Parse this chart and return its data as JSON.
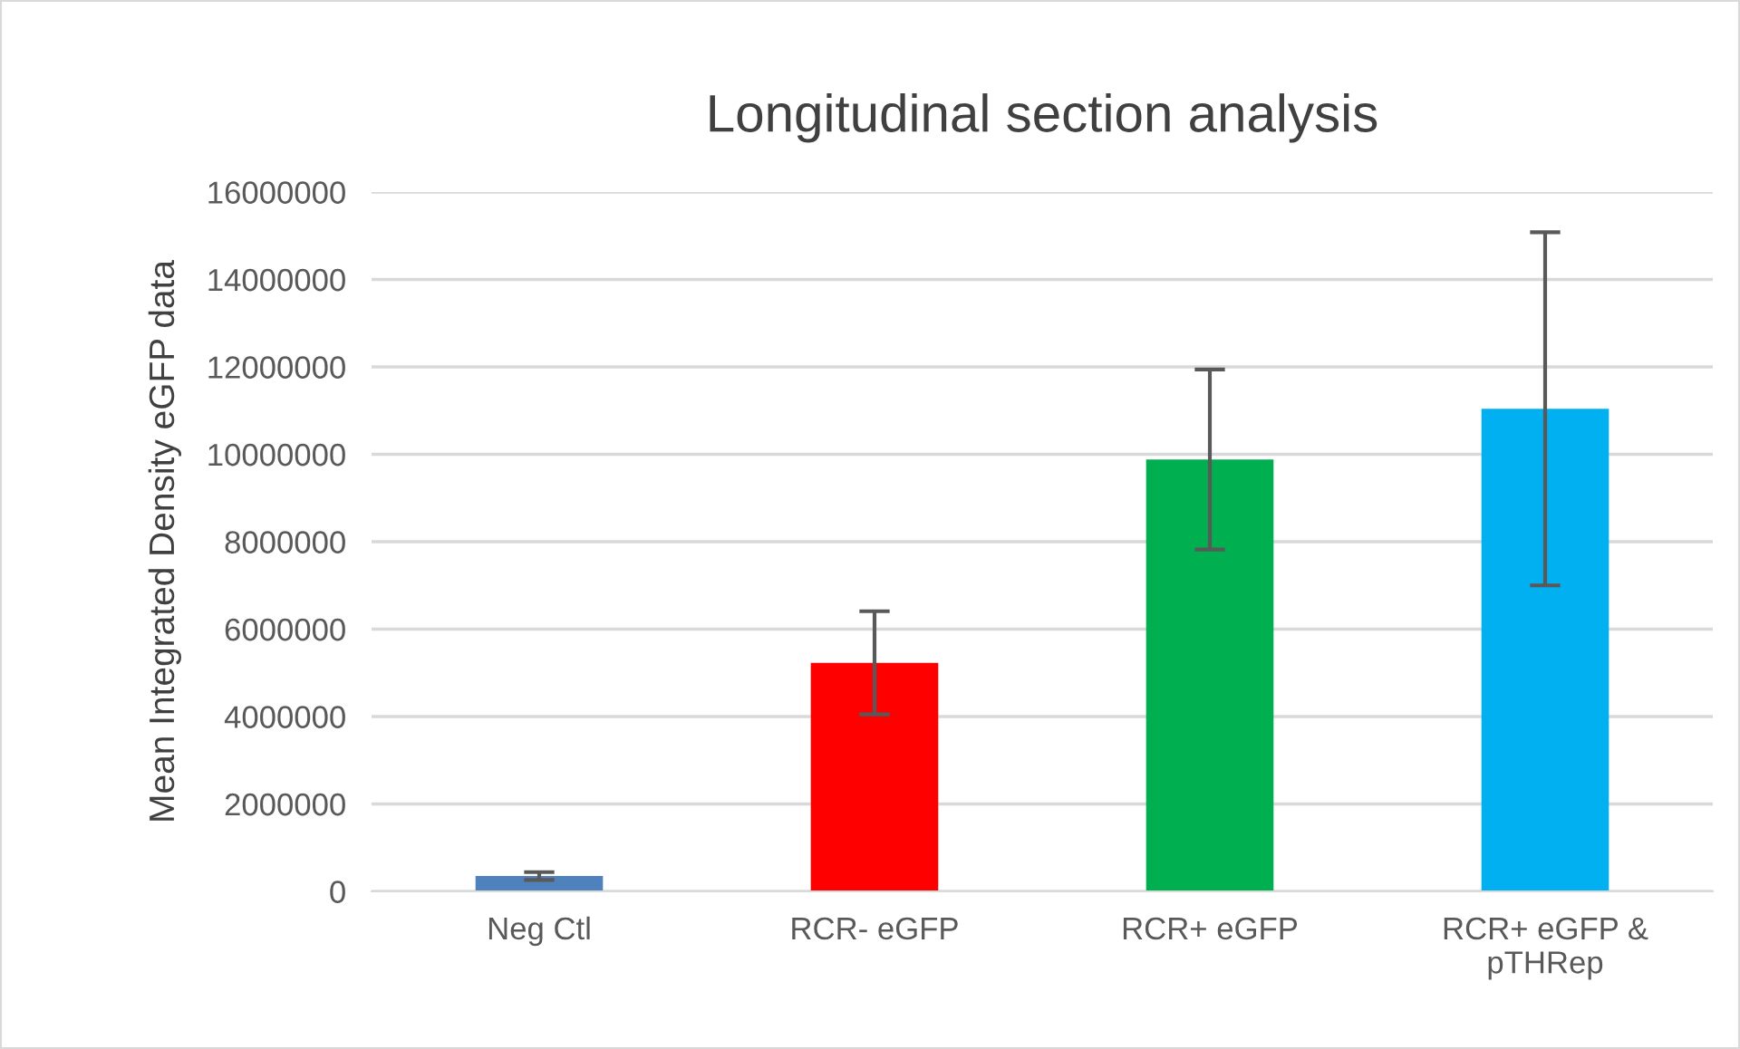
{
  "chart_data": {
    "type": "bar",
    "title": "Longitudinal section analysis",
    "ylabel": "Mean Integrated Density eGFP data",
    "categories": [
      "Neg Ctl",
      "RCR- eGFP",
      "RCR+ eGFP",
      "RCR+ eGFP &\npTHRep"
    ],
    "values": [
      350000,
      5230000,
      9880000,
      11040000
    ],
    "colors": [
      "#4f81bd",
      "#ff0000",
      "#00b050",
      "#00b0f0"
    ],
    "errors": [
      90000,
      1180000,
      2060000,
      4040000
    ],
    "ylim": [
      0,
      16000000
    ],
    "yticks": [
      0,
      2000000,
      4000000,
      6000000,
      8000000,
      10000000,
      12000000,
      14000000,
      16000000
    ],
    "grid": "y"
  }
}
